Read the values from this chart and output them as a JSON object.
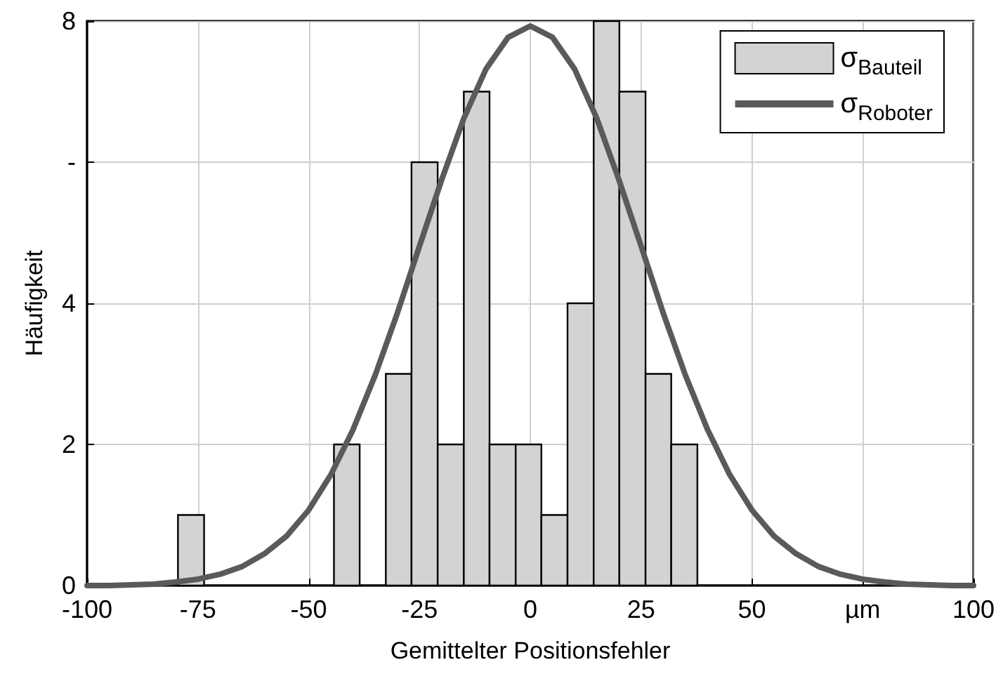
{
  "chart_data": {
    "type": "histogram",
    "xlabel": "Gemittelter Positionsfehler",
    "ylabel": "Häufigkeit",
    "xlim": [
      -100,
      100
    ],
    "xticks": [
      -100,
      -75,
      -50,
      -25,
      0,
      25,
      50,
      {
        "value": 75,
        "label": "µm"
      },
      100
    ],
    "ylim": [
      0,
      8
    ],
    "yticks": [
      0,
      2,
      4,
      {
        "value": 6,
        "label": "-"
      },
      8
    ],
    "grid": true,
    "legend": "top right",
    "series": [
      {
        "name": "σ$_{Bauteil}$",
        "color": "#d3d3d3",
        "bins": [
          -79.5,
          -73.6,
          -44.3,
          -38.5,
          -32.6,
          -26.8,
          -20.9,
          -15.0,
          -9.2,
          -3.3,
          2.5,
          8.4,
          14.3,
          20.1,
          26.0,
          31.8,
          37.7
        ],
        "values": [
          1,
          0,
          2,
          0,
          3,
          6,
          2,
          7,
          2,
          2,
          1,
          4,
          8,
          7,
          3,
          2
        ]
      },
      {
        "name": "σ$_{Roboter}$",
        "type": "line",
        "color": "#5a5a5a",
        "marker": "none",
        "line_style": "solid",
        "x": [
          -100,
          -95,
          -90,
          -85,
          -80,
          -75,
          -70,
          -65,
          -60,
          -55,
          -50,
          -45,
          -40,
          -35,
          -30,
          -25,
          -20,
          -15,
          -10,
          -5,
          0,
          5,
          10,
          15,
          20,
          25,
          30,
          35,
          40,
          45,
          50,
          55,
          60,
          65,
          70,
          75,
          80,
          85,
          90,
          95,
          100
        ],
        "values": [
          0,
          0,
          0.01,
          0.02,
          0.05,
          0.09,
          0.16,
          0.27,
          0.45,
          0.7,
          1.07,
          1.57,
          2.21,
          2.98,
          3.86,
          4.81,
          5.75,
          6.62,
          7.32,
          7.77,
          7.93,
          7.77,
          7.32,
          6.62,
          5.75,
          4.81,
          3.86,
          2.98,
          2.21,
          1.57,
          1.07,
          0.7,
          0.45,
          0.27,
          0.16,
          0.09,
          0.05,
          0.02,
          0.01,
          0,
          0
        ]
      }
    ]
  }
}
